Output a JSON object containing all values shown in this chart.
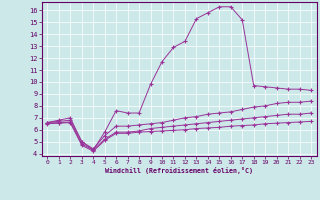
{
  "xlabel": "Windchill (Refroidissement éolien,°C)",
  "background_color": "#cce8e8",
  "line_color": "#993399",
  "xlim": [
    -0.5,
    23.5
  ],
  "ylim": [
    3.8,
    16.7
  ],
  "xticks": [
    0,
    1,
    2,
    3,
    4,
    5,
    6,
    7,
    8,
    9,
    10,
    11,
    12,
    13,
    14,
    15,
    16,
    17,
    18,
    19,
    20,
    21,
    22,
    23
  ],
  "yticks": [
    4,
    5,
    6,
    7,
    8,
    9,
    10,
    11,
    12,
    13,
    14,
    15,
    16
  ],
  "line1_x": [
    0,
    1,
    2,
    3,
    4,
    5,
    6,
    7,
    8,
    9,
    10,
    11,
    12,
    13,
    14,
    15,
    16,
    17,
    18,
    19,
    20,
    21,
    22,
    23
  ],
  "line1_y": [
    6.6,
    6.8,
    7.0,
    5.0,
    4.3,
    5.8,
    7.6,
    7.4,
    7.4,
    9.8,
    11.7,
    12.9,
    13.4,
    15.3,
    15.8,
    16.3,
    16.3,
    15.2,
    9.7,
    9.6,
    9.5,
    9.4,
    9.4,
    9.3
  ],
  "line2_x": [
    0,
    2,
    3,
    4,
    5,
    6,
    7,
    8,
    9,
    10,
    11,
    12,
    13,
    14,
    15,
    16,
    17,
    18,
    19,
    20,
    21,
    22,
    23
  ],
  "line2_y": [
    6.6,
    6.8,
    5.0,
    4.4,
    5.5,
    6.3,
    6.3,
    6.4,
    6.5,
    6.6,
    6.8,
    7.0,
    7.1,
    7.3,
    7.4,
    7.5,
    7.7,
    7.9,
    8.0,
    8.2,
    8.3,
    8.3,
    8.4
  ],
  "line3_x": [
    0,
    1,
    2,
    3,
    4,
    5,
    6,
    7,
    8,
    9,
    10,
    11,
    12,
    13,
    14,
    15,
    16,
    17,
    18,
    19,
    20,
    21,
    22,
    23
  ],
  "line3_y": [
    6.55,
    6.6,
    6.65,
    4.8,
    4.3,
    5.2,
    5.8,
    5.8,
    5.9,
    6.1,
    6.2,
    6.3,
    6.4,
    6.5,
    6.6,
    6.7,
    6.8,
    6.9,
    7.0,
    7.1,
    7.2,
    7.3,
    7.3,
    7.4
  ],
  "line4_x": [
    0,
    1,
    2,
    3,
    4,
    5,
    6,
    7,
    8,
    9,
    10,
    11,
    12,
    13,
    14,
    15,
    16,
    17,
    18,
    19,
    20,
    21,
    22,
    23
  ],
  "line4_y": [
    6.5,
    6.55,
    6.6,
    4.7,
    4.2,
    5.1,
    5.7,
    5.7,
    5.8,
    5.85,
    5.9,
    5.95,
    6.0,
    6.1,
    6.15,
    6.2,
    6.3,
    6.35,
    6.4,
    6.5,
    6.55,
    6.6,
    6.65,
    6.7
  ]
}
